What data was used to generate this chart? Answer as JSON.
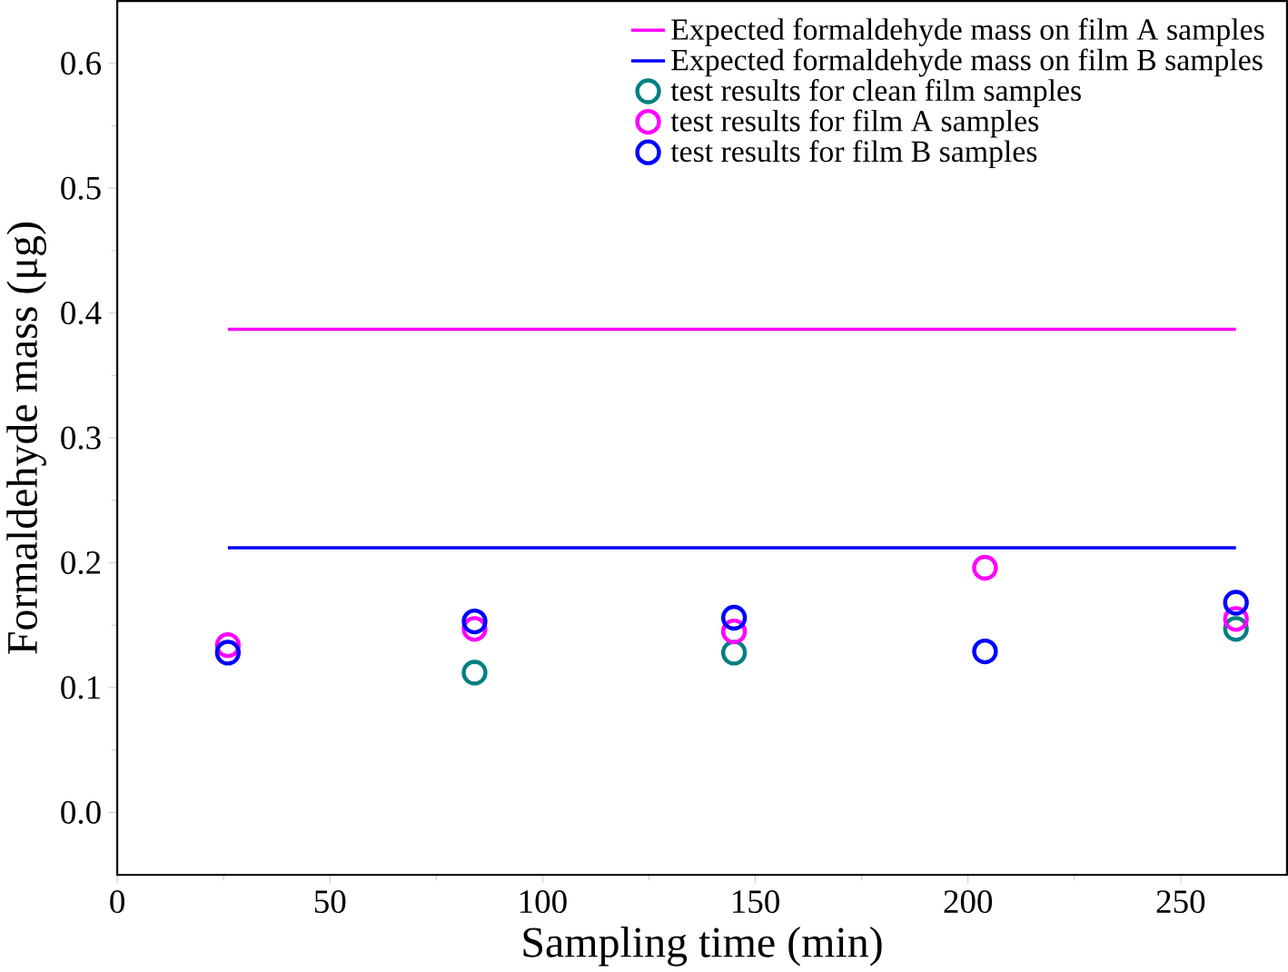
{
  "chart_data": {
    "type": "scatter",
    "xlabel": "Sampling time (min)",
    "ylabel": "Formaldehyde mass (μg)",
    "xlim": [
      0,
      275
    ],
    "xticks": [
      0,
      50,
      100,
      150,
      200,
      250
    ],
    "ylim": [
      -0.05,
      0.65
    ],
    "yticks": [
      {
        "value": 0,
        "label": "0.0"
      },
      {
        "value": 0.1,
        "label": "0.1"
      },
      {
        "value": 0.2,
        "label": "0.2"
      },
      {
        "value": 0.3,
        "label": "0.3"
      },
      {
        "value": 0.4,
        "label": "0.4"
      },
      {
        "value": 0.5,
        "label": "0.5"
      },
      {
        "value": 0.6,
        "label": "0.6"
      }
    ],
    "grid": false,
    "legend": "top right",
    "series": [
      {
        "type": "line",
        "name": "Expected formaldehyde mass on film A samples",
        "color": "#ff00ff",
        "x": [
          26,
          263
        ],
        "values": [
          0.387,
          0.387
        ]
      },
      {
        "type": "line",
        "name": "Expected formaldehyde mass on film B samples",
        "color": "#0000ff",
        "x": [
          26,
          263
        ],
        "values": [
          0.212,
          0.212
        ]
      },
      {
        "marker": "circle",
        "name": "test results for clean film samples",
        "color": "#008080",
        "x": [
          84,
          145,
          263
        ],
        "values": [
          0.112,
          0.128,
          0.147
        ]
      },
      {
        "marker": "circle",
        "name": "test results for film A samples",
        "color": "#ff00ff",
        "x": [
          26,
          84,
          145,
          204,
          263
        ],
        "values": [
          0.134,
          0.147,
          0.145,
          0.196,
          0.155
        ]
      },
      {
        "marker": "circle",
        "name": "test results for film B samples",
        "color": "#0000ff",
        "x": [
          26,
          84,
          145,
          204,
          263
        ],
        "values": [
          0.128,
          0.153,
          0.156,
          0.129,
          0.168
        ]
      }
    ]
  }
}
